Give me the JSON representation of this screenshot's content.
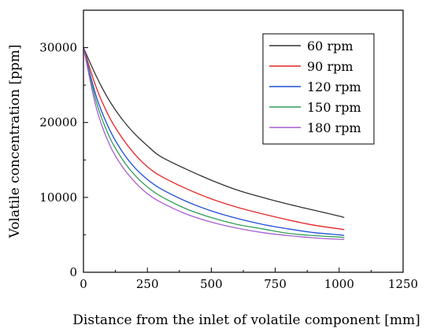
{
  "chart_data": {
    "type": "line",
    "title": "",
    "xlabel": "Distance from the inlet of volatile component [mm]",
    "ylabel": "Volatile concentration [ppm]",
    "xlim": [
      0,
      1250
    ],
    "ylim": [
      0,
      35000
    ],
    "xticks": [
      0,
      250,
      500,
      750,
      1000,
      1250
    ],
    "yticks": [
      0,
      10000,
      20000,
      30000
    ],
    "xtick_labels": [
      "0",
      "250",
      "500",
      "750",
      "1000",
      "1250"
    ],
    "ytick_labels": [
      "0",
      "10000",
      "20000",
      "30000"
    ],
    "grid": false,
    "legend_position": "top-right",
    "series": [
      {
        "name": "60 rpm",
        "color": "#333333",
        "x": [
          0,
          50,
          100,
          150,
          200,
          250,
          300,
          400,
          500,
          600,
          700,
          800,
          900,
          1000,
          1020
        ],
        "y": [
          30000,
          26200,
          23000,
          20500,
          18500,
          16900,
          15500,
          13800,
          12300,
          11000,
          10000,
          9100,
          8300,
          7500,
          7300
        ]
      },
      {
        "name": "90 rpm",
        "color": "#e32626",
        "x": [
          0,
          50,
          100,
          150,
          200,
          250,
          300,
          400,
          500,
          600,
          700,
          800,
          900,
          1000,
          1020
        ],
        "y": [
          30000,
          24700,
          20800,
          18000,
          15800,
          14100,
          12900,
          11200,
          9800,
          8700,
          7800,
          7000,
          6300,
          5800,
          5700
        ]
      },
      {
        "name": "120 rpm",
        "color": "#1f4fd6",
        "x": [
          0,
          50,
          100,
          150,
          200,
          250,
          300,
          400,
          500,
          600,
          700,
          800,
          900,
          1000,
          1020
        ],
        "y": [
          30000,
          23500,
          19200,
          16200,
          14000,
          12400,
          11200,
          9500,
          8200,
          7200,
          6400,
          5800,
          5300,
          5000,
          4900
        ]
      },
      {
        "name": "150 rpm",
        "color": "#2f9e57",
        "x": [
          0,
          50,
          100,
          150,
          200,
          250,
          300,
          400,
          500,
          600,
          700,
          800,
          900,
          1000,
          1020
        ],
        "y": [
          30000,
          22800,
          18200,
          15200,
          13000,
          11400,
          10200,
          8500,
          7300,
          6400,
          5800,
          5200,
          4900,
          4700,
          4600
        ]
      },
      {
        "name": "180 rpm",
        "color": "#a55fd0",
        "x": [
          0,
          50,
          100,
          150,
          200,
          250,
          300,
          400,
          500,
          600,
          700,
          800,
          900,
          1000,
          1020
        ],
        "y": [
          30000,
          22000,
          17200,
          14200,
          12100,
          10500,
          9400,
          7800,
          6700,
          5900,
          5300,
          4900,
          4600,
          4400,
          4400
        ]
      }
    ]
  }
}
